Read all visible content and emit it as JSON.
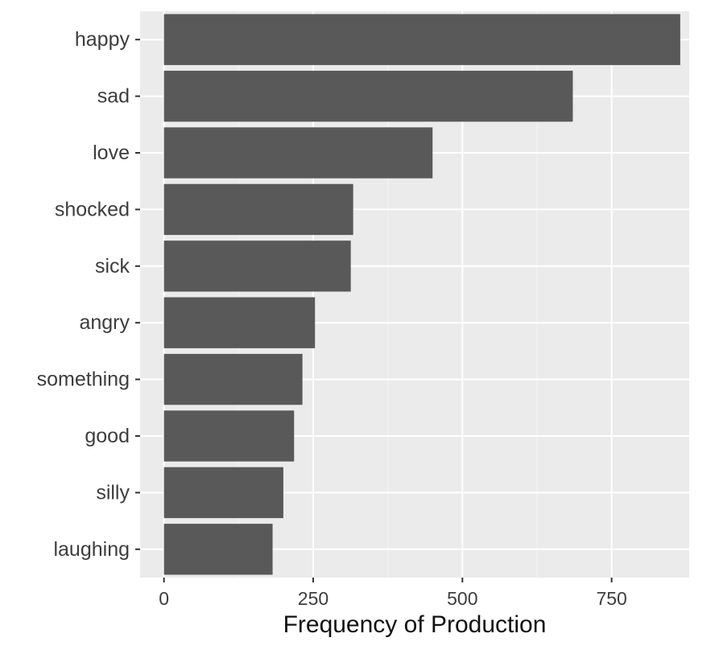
{
  "chart_data": {
    "type": "bar",
    "orientation": "horizontal",
    "categories": [
      "happy",
      "sad",
      "love",
      "shocked",
      "sick",
      "angry",
      "something",
      "good",
      "silly",
      "laughing"
    ],
    "values": [
      865,
      685,
      450,
      317,
      313,
      253,
      232,
      218,
      200,
      182
    ],
    "title": "",
    "xlabel": "Frequency of Production",
    "ylabel": "",
    "xlim": [
      -40,
      880
    ],
    "x_ticks": [
      0,
      250,
      500,
      750
    ],
    "x_tick_labels": [
      "0",
      "250",
      "500",
      "750"
    ],
    "grid": true,
    "legend": "none",
    "colors": {
      "bar": "#595959",
      "panel_background": "#ebebeb",
      "grid_major": "#ffffff",
      "grid_minor": "#f4f4f4",
      "text": "#3d3d3d",
      "axis_title": "#111111"
    }
  }
}
